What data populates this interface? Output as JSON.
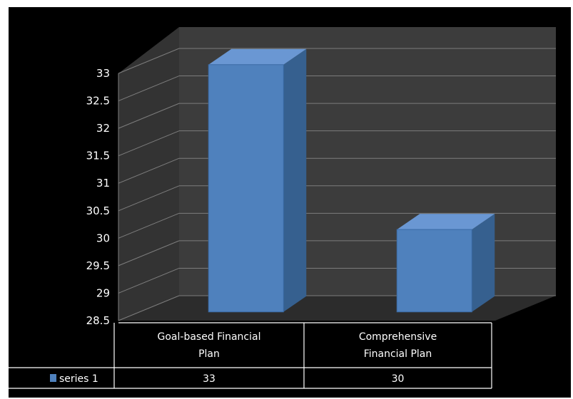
{
  "chart_data": {
    "type": "bar",
    "categories": [
      "Goal-based Financial Plan",
      "Comprehensive Financial Plan"
    ],
    "category_label_lines": [
      [
        "Goal-based Financial",
        "Plan"
      ],
      [
        "Comprehensive",
        "Financial Plan"
      ]
    ],
    "series": [
      {
        "name": "series 1",
        "values": [
          33,
          30
        ],
        "value_labels": [
          "33",
          "30"
        ]
      }
    ],
    "yticks": [
      28.5,
      29,
      29.5,
      30,
      30.5,
      31,
      31.5,
      32,
      32.5,
      33
    ],
    "ytick_labels": [
      "28.5",
      "29",
      "29.5",
      "30",
      "30.5",
      "31",
      "31.5",
      "32",
      "32.5",
      "33"
    ],
    "ylim": [
      28.5,
      33
    ],
    "title": "",
    "xlabel": "",
    "ylabel": "",
    "grid": true,
    "style": "3d-column",
    "data_table": true,
    "colors": {
      "background": "#000000",
      "bar_front": "#4f81bd",
      "bar_side": "#36608f",
      "bar_top": "#6a97d3",
      "back_wall": "#3c3c3c",
      "side_wall": "#333333",
      "floor": "#2c2c2c",
      "grid_line": "#7d7d7d",
      "table_border": "#ffffff",
      "text": "#ffffff"
    }
  }
}
